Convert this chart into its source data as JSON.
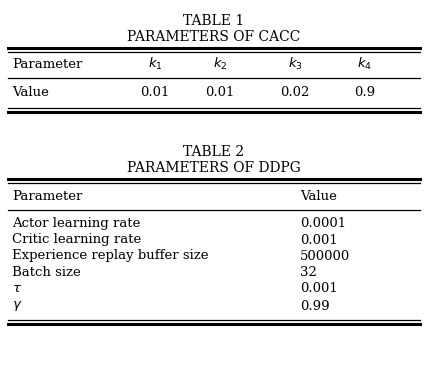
{
  "table1_title": "TABLE 1",
  "table1_subtitle": "PARAMETERS OF CACC",
  "table1_col_headers": [
    "Parameter",
    "k$_1$",
    "k$_2$",
    "k$_3$",
    "k$_4$"
  ],
  "table1_row": [
    "Value",
    "0.01",
    "0.01",
    "0.02",
    "0.9"
  ],
  "table2_title": "TABLE 2",
  "table2_subtitle": "PARAMETERS OF DDPG",
  "table2_col_headers": [
    "Parameter",
    "Value"
  ],
  "table2_rows": [
    [
      "Actor learning rate",
      "0.0001"
    ],
    [
      "Critic learning rate",
      "0.001"
    ],
    [
      "Experience replay buffer size",
      "500000"
    ],
    [
      "Batch size",
      "32"
    ],
    [
      "$\\tau$",
      "0.001"
    ],
    [
      "$\\gamma$",
      "0.99"
    ]
  ],
  "bg_color": "white",
  "text_color": "black"
}
